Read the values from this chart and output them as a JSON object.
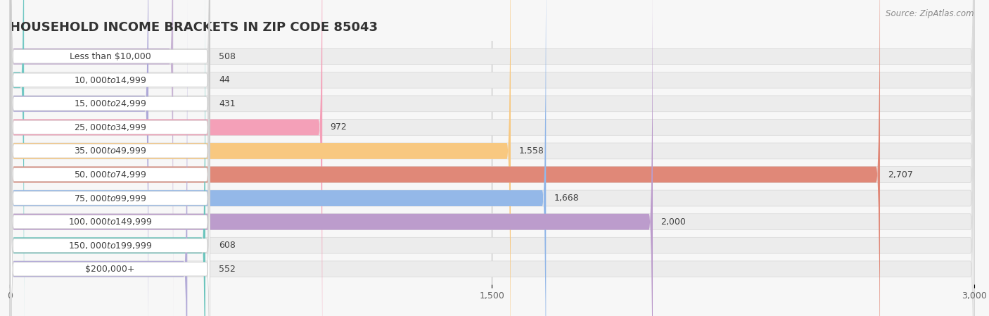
{
  "title": "HOUSEHOLD INCOME BRACKETS IN ZIP CODE 85043",
  "source": "Source: ZipAtlas.com",
  "categories": [
    "Less than $10,000",
    "$10,000 to $14,999",
    "$15,000 to $24,999",
    "$25,000 to $34,999",
    "$35,000 to $49,999",
    "$50,000 to $74,999",
    "$75,000 to $99,999",
    "$100,000 to $149,999",
    "$150,000 to $199,999",
    "$200,000+"
  ],
  "values": [
    508,
    44,
    431,
    972,
    1558,
    2707,
    1668,
    2000,
    608,
    552
  ],
  "bar_colors": [
    "#c8b4d4",
    "#72c8c4",
    "#aea8d8",
    "#f4a0b8",
    "#f8c880",
    "#e08878",
    "#94b8e8",
    "#bc9ccc",
    "#68c4bc",
    "#b4acd8"
  ],
  "xlim": [
    0,
    3000
  ],
  "xticks": [
    0,
    1500,
    3000
  ],
  "background_color": "#f7f7f7",
  "bar_bg_color": "#e8e8e8",
  "row_bg_color": "#f0f0f0",
  "title_fontsize": 13,
  "label_fontsize": 9,
  "value_fontsize": 9,
  "source_fontsize": 8.5
}
